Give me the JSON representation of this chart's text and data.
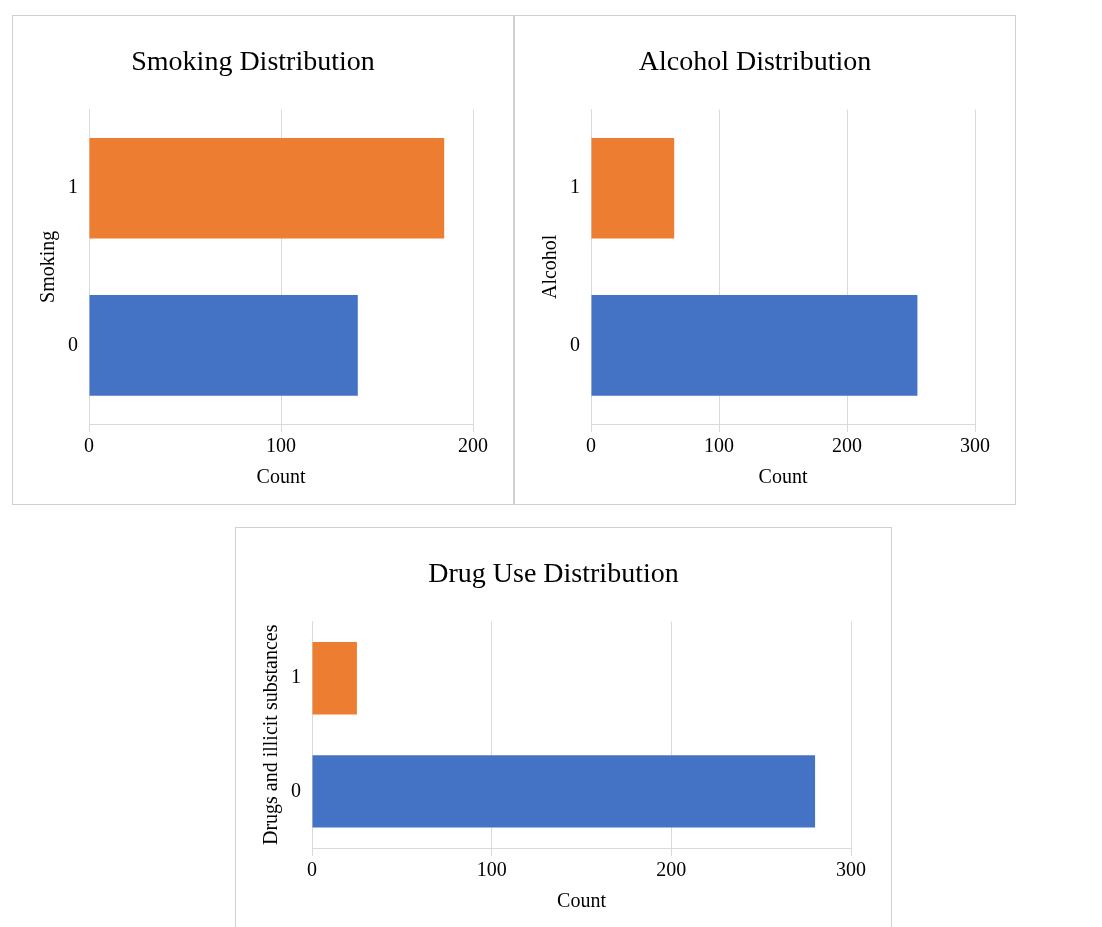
{
  "chart_data": [
    {
      "type": "bar",
      "orientation": "horizontal",
      "title": "Smoking Distribution",
      "xlabel": "Count",
      "ylabel": "Smoking",
      "categories": [
        "1",
        "0"
      ],
      "values": [
        185,
        140
      ],
      "colors": [
        "#ed7d31",
        "#4472c4"
      ],
      "xlim": [
        0,
        200
      ],
      "xticks": [
        0,
        100,
        200
      ],
      "grid": "x",
      "legend": false
    },
    {
      "type": "bar",
      "orientation": "horizontal",
      "title": "Alcohol Distribution",
      "xlabel": "Count",
      "ylabel": "Alcohol",
      "categories": [
        "1",
        "0"
      ],
      "values": [
        65,
        255
      ],
      "colors": [
        "#ed7d31",
        "#4472c4"
      ],
      "xlim": [
        0,
        300
      ],
      "xticks": [
        0,
        100,
        200,
        300
      ],
      "grid": "x",
      "legend": false
    },
    {
      "type": "bar",
      "orientation": "horizontal",
      "title": "Drug Use Distribution",
      "xlabel": "Count",
      "ylabel": "Drugs and illicit substances",
      "categories": [
        "1",
        "0"
      ],
      "values": [
        25,
        280
      ],
      "colors": [
        "#ed7d31",
        "#4472c4"
      ],
      "xlim": [
        0,
        300
      ],
      "xticks": [
        0,
        100,
        200,
        300
      ],
      "grid": "x",
      "legend": false
    }
  ]
}
